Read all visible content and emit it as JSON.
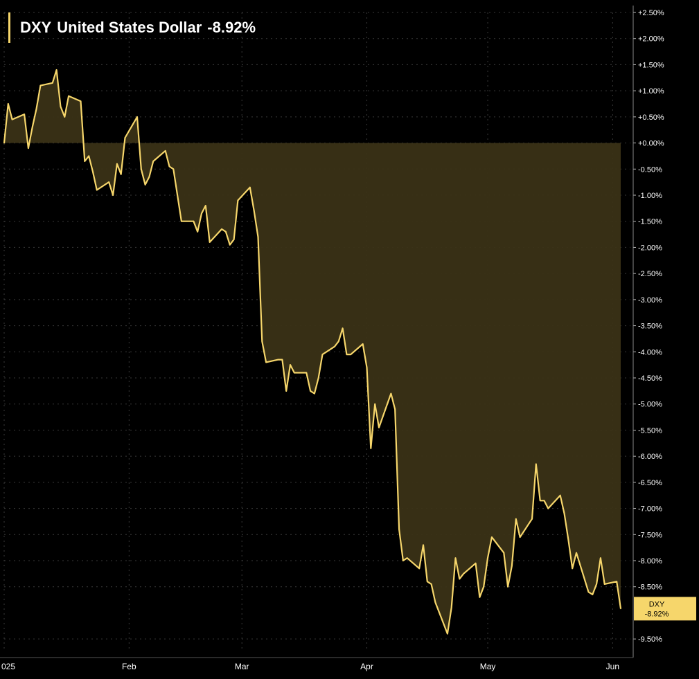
{
  "chart_data": {
    "type": "area",
    "title": {
      "ticker": "DXY",
      "name": "United States Dollar",
      "change": "-8.92%"
    },
    "series": [
      {
        "name": "DXY",
        "color": "#f6d66b",
        "fill_color": "#3a3216",
        "points": [
          [
            "2025-01-01",
            0.0
          ],
          [
            "2025-01-02",
            0.75
          ],
          [
            "2025-01-03",
            0.45
          ],
          [
            "2025-01-06",
            0.55
          ],
          [
            "2025-01-07",
            -0.1
          ],
          [
            "2025-01-08",
            0.3
          ],
          [
            "2025-01-09",
            0.65
          ],
          [
            "2025-01-10",
            1.1
          ],
          [
            "2025-01-13",
            1.15
          ],
          [
            "2025-01-14",
            1.4
          ],
          [
            "2025-01-15",
            0.7
          ],
          [
            "2025-01-16",
            0.5
          ],
          [
            "2025-01-17",
            0.9
          ],
          [
            "2025-01-20",
            0.8
          ],
          [
            "2025-01-21",
            -0.35
          ],
          [
            "2025-01-22",
            -0.25
          ],
          [
            "2025-01-23",
            -0.55
          ],
          [
            "2025-01-24",
            -0.9
          ],
          [
            "2025-01-27",
            -0.75
          ],
          [
            "2025-01-28",
            -1.0
          ],
          [
            "2025-01-29",
            -0.4
          ],
          [
            "2025-01-30",
            -0.6
          ],
          [
            "2025-01-31",
            0.1
          ],
          [
            "2025-02-03",
            0.5
          ],
          [
            "2025-02-04",
            -0.5
          ],
          [
            "2025-02-05",
            -0.8
          ],
          [
            "2025-02-06",
            -0.65
          ],
          [
            "2025-02-07",
            -0.35
          ],
          [
            "2025-02-10",
            -0.15
          ],
          [
            "2025-02-11",
            -0.45
          ],
          [
            "2025-02-12",
            -0.5
          ],
          [
            "2025-02-13",
            -1.0
          ],
          [
            "2025-02-14",
            -1.5
          ],
          [
            "2025-02-17",
            -1.5
          ],
          [
            "2025-02-18",
            -1.7
          ],
          [
            "2025-02-19",
            -1.35
          ],
          [
            "2025-02-20",
            -1.2
          ],
          [
            "2025-02-21",
            -1.9
          ],
          [
            "2025-02-24",
            -1.65
          ],
          [
            "2025-02-25",
            -1.7
          ],
          [
            "2025-02-26",
            -1.95
          ],
          [
            "2025-02-27",
            -1.85
          ],
          [
            "2025-02-28",
            -1.1
          ],
          [
            "2025-03-03",
            -0.85
          ],
          [
            "2025-03-04",
            -1.3
          ],
          [
            "2025-03-05",
            -1.8
          ],
          [
            "2025-03-06",
            -3.8
          ],
          [
            "2025-03-07",
            -4.2
          ],
          [
            "2025-03-10",
            -4.15
          ],
          [
            "2025-03-11",
            -4.15
          ],
          [
            "2025-03-12",
            -4.75
          ],
          [
            "2025-03-13",
            -4.25
          ],
          [
            "2025-03-14",
            -4.4
          ],
          [
            "2025-03-17",
            -4.4
          ],
          [
            "2025-03-18",
            -4.75
          ],
          [
            "2025-03-19",
            -4.8
          ],
          [
            "2025-03-20",
            -4.5
          ],
          [
            "2025-03-21",
            -4.05
          ],
          [
            "2025-03-24",
            -3.9
          ],
          [
            "2025-03-25",
            -3.8
          ],
          [
            "2025-03-26",
            -3.55
          ],
          [
            "2025-03-27",
            -4.05
          ],
          [
            "2025-03-28",
            -4.05
          ],
          [
            "2025-03-31",
            -3.85
          ],
          [
            "2025-04-01",
            -4.3
          ],
          [
            "2025-04-02",
            -5.85
          ],
          [
            "2025-04-03",
            -5.0
          ],
          [
            "2025-04-04",
            -5.45
          ],
          [
            "2025-04-07",
            -4.8
          ],
          [
            "2025-04-08",
            -5.1
          ],
          [
            "2025-04-09",
            -7.4
          ],
          [
            "2025-04-10",
            -8.0
          ],
          [
            "2025-04-11",
            -7.95
          ],
          [
            "2025-04-14",
            -8.15
          ],
          [
            "2025-04-15",
            -7.7
          ],
          [
            "2025-04-16",
            -8.4
          ],
          [
            "2025-04-17",
            -8.45
          ],
          [
            "2025-04-18",
            -8.8
          ],
          [
            "2025-04-21",
            -9.4
          ],
          [
            "2025-04-22",
            -8.9
          ],
          [
            "2025-04-23",
            -7.95
          ],
          [
            "2025-04-24",
            -8.35
          ],
          [
            "2025-04-25",
            -8.25
          ],
          [
            "2025-04-28",
            -8.05
          ],
          [
            "2025-04-29",
            -8.7
          ],
          [
            "2025-04-30",
            -8.5
          ],
          [
            "2025-05-01",
            -7.95
          ],
          [
            "2025-05-02",
            -7.55
          ],
          [
            "2025-05-05",
            -7.85
          ],
          [
            "2025-05-06",
            -8.5
          ],
          [
            "2025-05-07",
            -8.1
          ],
          [
            "2025-05-08",
            -7.2
          ],
          [
            "2025-05-09",
            -7.55
          ],
          [
            "2025-05-12",
            -7.2
          ],
          [
            "2025-05-13",
            -6.15
          ],
          [
            "2025-05-14",
            -6.85
          ],
          [
            "2025-05-15",
            -6.85
          ],
          [
            "2025-05-16",
            -7.0
          ],
          [
            "2025-05-19",
            -6.75
          ],
          [
            "2025-05-20",
            -7.1
          ],
          [
            "2025-05-21",
            -7.6
          ],
          [
            "2025-05-22",
            -8.15
          ],
          [
            "2025-05-23",
            -7.85
          ],
          [
            "2025-05-26",
            -8.6
          ],
          [
            "2025-05-27",
            -8.65
          ],
          [
            "2025-05-28",
            -8.45
          ],
          [
            "2025-05-29",
            -7.95
          ],
          [
            "2025-05-30",
            -8.45
          ],
          [
            "2025-06-02",
            -8.4
          ],
          [
            "2025-06-03",
            -8.92
          ]
        ]
      }
    ],
    "x_axis": {
      "start": "2025-01-01",
      "end": "2025-06-03",
      "ticks": [
        {
          "date": "2025-01-01",
          "label": "025"
        },
        {
          "date": "2025-02-01",
          "label": "Feb"
        },
        {
          "date": "2025-03-01",
          "label": "Mar"
        },
        {
          "date": "2025-04-01",
          "label": "Apr"
        },
        {
          "date": "2025-05-01",
          "label": "May"
        },
        {
          "date": "2025-06-01",
          "label": "Jun"
        }
      ]
    },
    "y_axis": {
      "position": "right",
      "unit": "%",
      "ylim": [
        -9.75,
        2.5
      ],
      "ticks": [
        2.5,
        2.0,
        1.5,
        1.0,
        0.5,
        0.0,
        -0.5,
        -1.0,
        -1.5,
        -2.0,
        -2.5,
        -3.0,
        -3.5,
        -4.0,
        -4.5,
        -5.0,
        -5.5,
        -6.0,
        -6.5,
        -7.0,
        -7.5,
        -8.0,
        -8.5,
        -9.5
      ],
      "tick_labels": [
        "+2.50%",
        "+2.00%",
        "+1.50%",
        "+1.00%",
        "+0.50%",
        "+0.00%",
        "-0.50%",
        "-1.00%",
        "-1.50%",
        "-2.00%",
        "-2.50%",
        "-3.00%",
        "-3.50%",
        "-4.00%",
        "-4.50%",
        "-5.00%",
        "-5.50%",
        "-6.00%",
        "-6.50%",
        "-7.00%",
        "-7.50%",
        "-8.00%",
        "-8.50%",
        "-9.50%"
      ]
    },
    "last_value_badge": {
      "label": "DXY",
      "value": "-8.92%",
      "y": -8.92
    },
    "baseline": 0.0,
    "grid": true,
    "background": "#000000",
    "grid_color": "#3a3a3a",
    "text_color": "#ffffff"
  }
}
